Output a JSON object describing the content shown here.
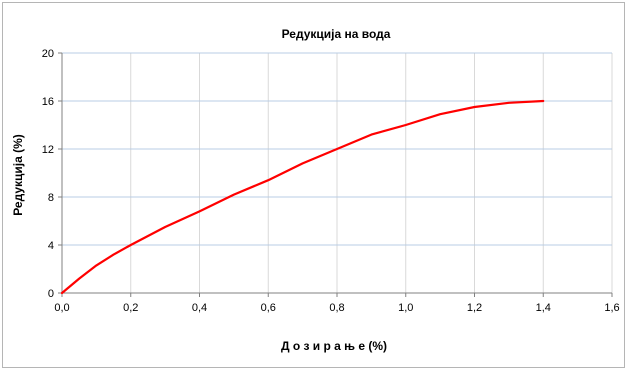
{
  "chart_data": {
    "type": "line",
    "title": "Редукција на вода",
    "xlabel": "Д о з и р а њ е (%)",
    "ylabel": "Редукција (%)",
    "xlim": [
      0,
      1.6
    ],
    "ylim": [
      0,
      20
    ],
    "x_ticks": [
      "0,0",
      "0,2",
      "0,4",
      "0,6",
      "0,8",
      "1,0",
      "1,2",
      "1,4",
      "1,6"
    ],
    "y_ticks": [
      "0",
      "4",
      "8",
      "12",
      "16",
      "20"
    ],
    "grid": true,
    "legend": "none",
    "series": [
      {
        "color": "#ff0000",
        "x": [
          0,
          0.05,
          0.1,
          0.15,
          0.2,
          0.3,
          0.4,
          0.5,
          0.6,
          0.7,
          0.8,
          0.9,
          1.0,
          1.1,
          1.2,
          1.3,
          1.4
        ],
        "y": [
          0,
          1.2,
          2.3,
          3.2,
          4.0,
          5.5,
          6.8,
          8.2,
          9.4,
          10.8,
          12.0,
          13.2,
          14.0,
          14.9,
          15.5,
          15.85,
          16.0
        ]
      }
    ]
  }
}
